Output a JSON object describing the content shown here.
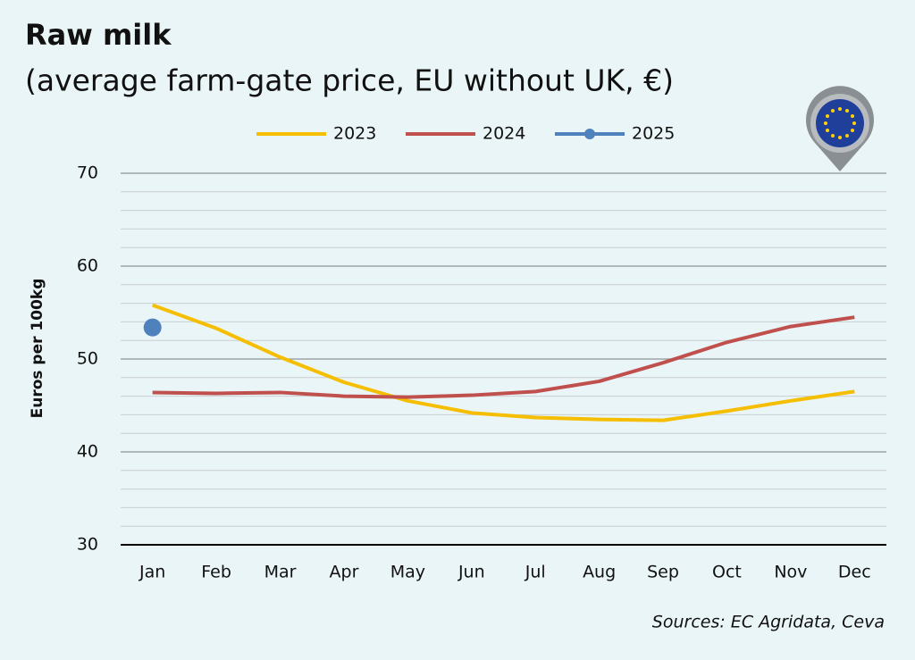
{
  "chart_data": {
    "type": "line",
    "title": "Raw milk",
    "subtitle": "(average farm-gate price, EU without UK, €)",
    "y_label": "Euros per 100kg",
    "source": "Sources: EC Agridata, Ceva",
    "categories": [
      "Jan",
      "Feb",
      "Mar",
      "Apr",
      "May",
      "Jun",
      "Jul",
      "Aug",
      "Sep",
      "Oct",
      "Nov",
      "Dec"
    ],
    "series": [
      {
        "name": "2023",
        "color": "#f5be00",
        "values": [
          55.8,
          53.3,
          50.2,
          47.5,
          45.5,
          44.2,
          43.7,
          43.5,
          43.4,
          44.4,
          45.5,
          46.5
        ]
      },
      {
        "name": "2024",
        "color": "#c0504d",
        "values": [
          46.4,
          46.3,
          46.4,
          46.0,
          45.9,
          46.1,
          46.5,
          47.6,
          49.6,
          51.8,
          53.5,
          54.5
        ]
      },
      {
        "name": "2025",
        "color": "#4f81bd",
        "marker": true,
        "values": [
          53.4,
          null,
          null,
          null,
          null,
          null,
          null,
          null,
          null,
          null,
          null,
          null
        ]
      }
    ],
    "ylim": [
      30,
      70
    ],
    "yticks": [
      30,
      40,
      50,
      60,
      70
    ],
    "minor_yticks": [
      32,
      34,
      36,
      38,
      42,
      44,
      46,
      48,
      52,
      54,
      56,
      58,
      62,
      64,
      66,
      68
    ],
    "grid": true,
    "legend": "top"
  }
}
